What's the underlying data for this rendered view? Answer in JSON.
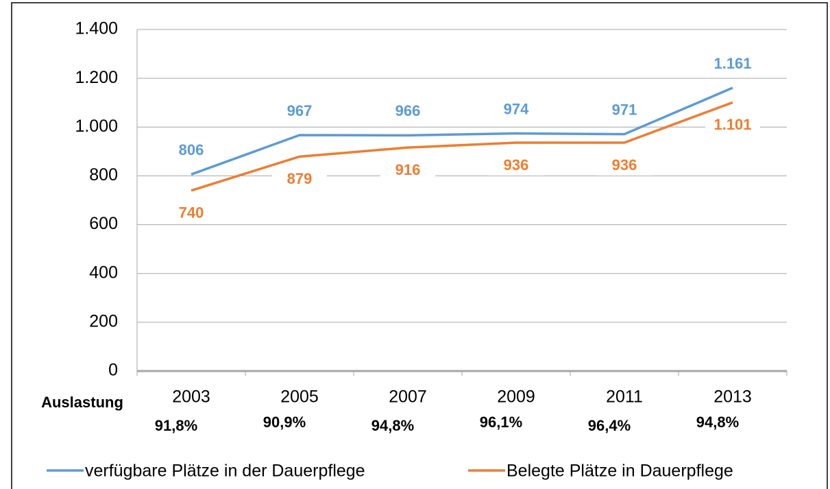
{
  "chart_data": {
    "type": "line",
    "categories": [
      "2003",
      "2005",
      "2007",
      "2009",
      "2011",
      "2013"
    ],
    "series": [
      {
        "name": "verfügbare Plätze in der Dauerpflege",
        "color": "#5b9bd5",
        "values": [
          806,
          967,
          966,
          974,
          971,
          1161
        ],
        "value_labels": [
          "806",
          "967",
          "966",
          "974",
          "971",
          "1.161"
        ]
      },
      {
        "name": "Belegte Plätze in Dauerpflege",
        "color": "#ed7d31",
        "values": [
          740,
          879,
          916,
          936,
          936,
          1101
        ],
        "value_labels": [
          "740",
          "879",
          "916",
          "936",
          "936",
          "1.101"
        ]
      }
    ],
    "ylim": [
      0,
      1400
    ],
    "yticks": [
      0,
      200,
      400,
      600,
      800,
      {
        "value": 1000,
        "label": "1.000"
      },
      {
        "value": 1200,
        "label": "1.200"
      },
      {
        "value": 1400,
        "label": "1.400"
      }
    ],
    "grid": true,
    "legend": "bottom",
    "utilization": {
      "label": "Auslastung",
      "values": [
        "91,8%",
        "90,9%",
        "94,8%",
        "96,1%",
        "96,4%",
        "94,8%"
      ]
    }
  }
}
